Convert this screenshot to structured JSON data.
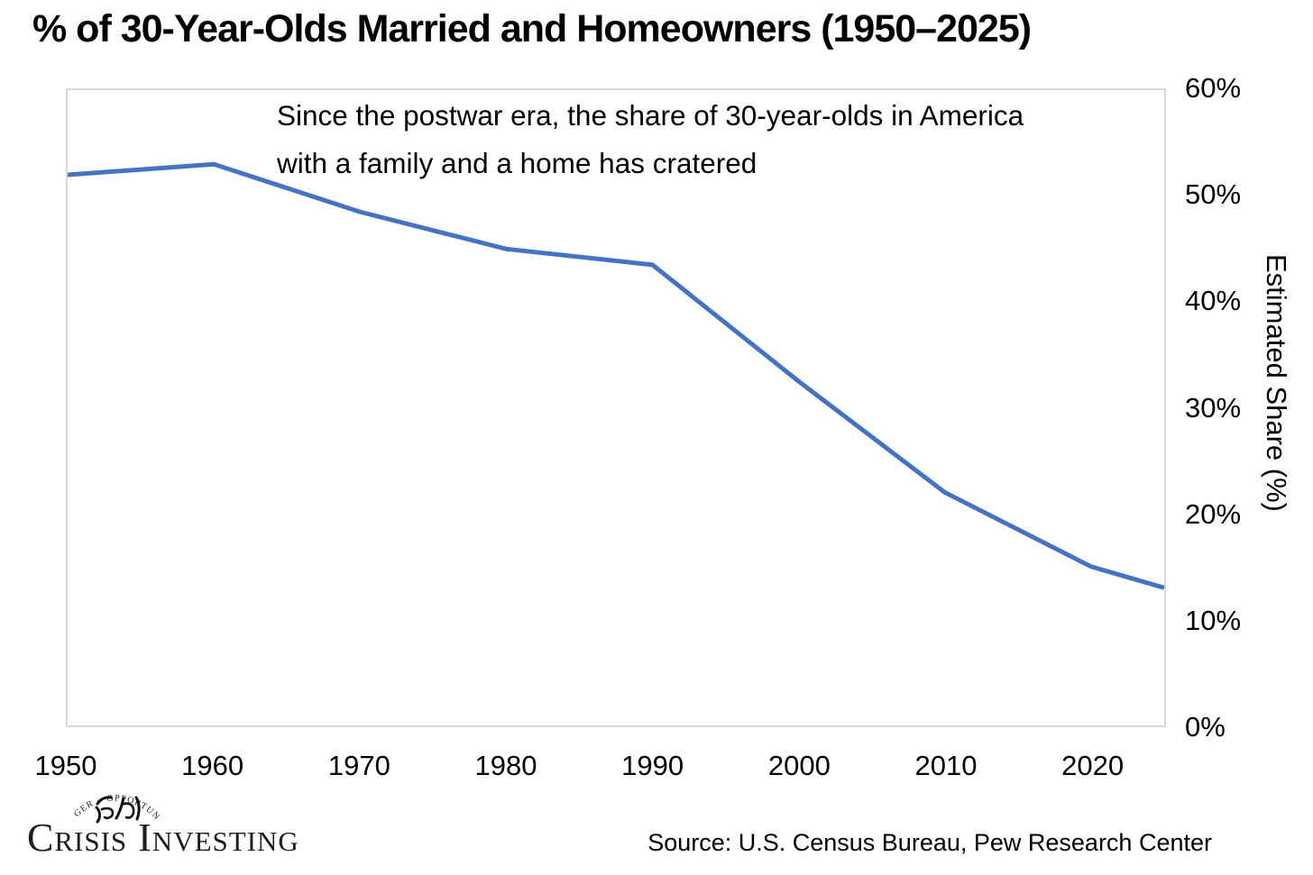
{
  "header": {
    "title": "% of 30-Year-Olds Married and Homeowners (1950–2025)"
  },
  "chart_data": {
    "type": "line",
    "title": "% of 30-Year-Olds Married and Homeowners (1950–2025)",
    "annotation": "Since the postwar era, the share of 30-year-olds in America with a family and a home has cratered",
    "annotation_line1": "Since the postwar era, the share of 30-year-olds in America",
    "annotation_line2": "with a family and a home has cratered",
    "x": [
      1950,
      1960,
      1970,
      1980,
      1990,
      2000,
      2010,
      2020,
      2025
    ],
    "values": [
      52,
      53,
      48.5,
      45,
      43.5,
      32.5,
      22,
      15,
      13
    ],
    "xlabel": "",
    "ylabel": "Estimated Share (%)",
    "xlim": [
      1950,
      2025
    ],
    "ylim": [
      0,
      60
    ],
    "ytick_step": 10,
    "yticks": [
      "0%",
      "10%",
      "20%",
      "30%",
      "40%",
      "50%",
      "60%"
    ],
    "xticks": [
      "1950",
      "1960",
      "1970",
      "1980",
      "1990",
      "2000",
      "2010",
      "2020"
    ],
    "grid": false,
    "legend": "none",
    "line_color": "#4472C4",
    "plot_border_color": "#d9d9d9"
  },
  "footer": {
    "logo_arc_text": "DANGER + OPPORTUNITY",
    "logo_chinese_characters": "危机",
    "logo_text": "Crisis Investing",
    "source": "Source: U.S. Census Bureau, Pew Research Center"
  }
}
